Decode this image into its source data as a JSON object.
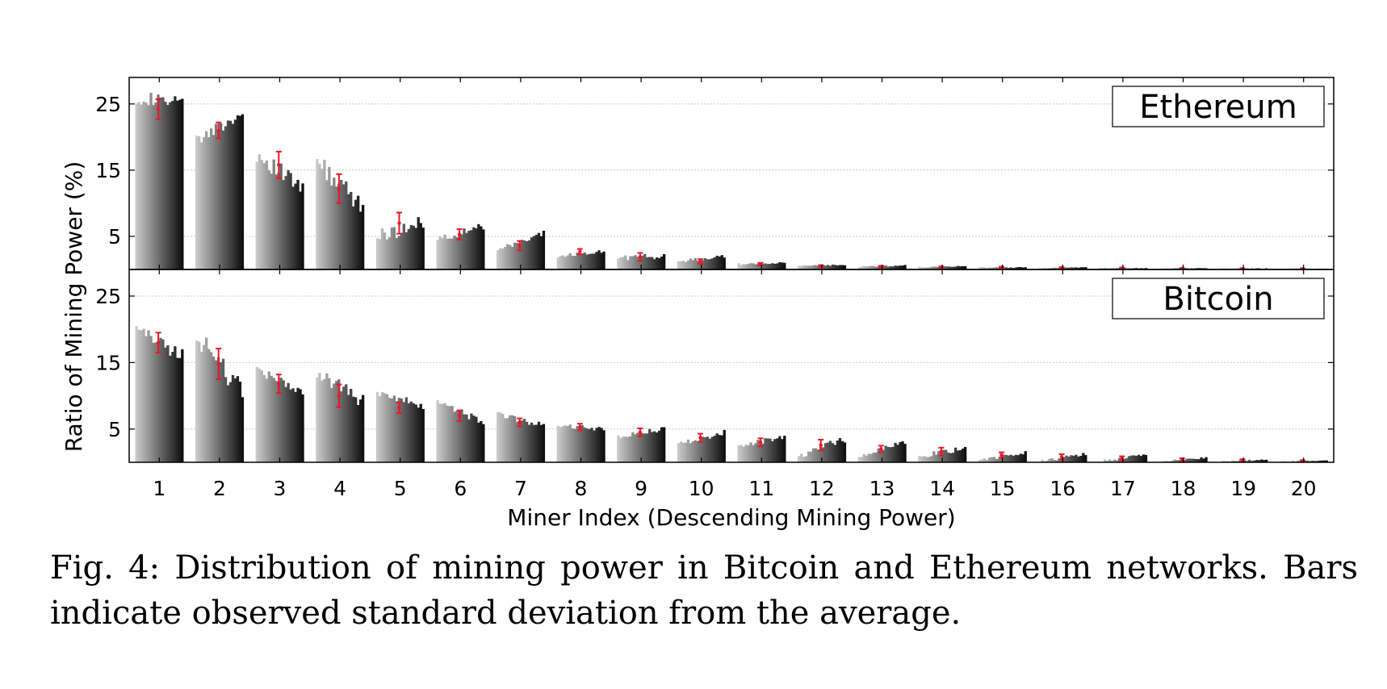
{
  "figure": {
    "caption": "Fig. 4: Distribution of mining power in Bitcoin and Ethereum networks. Bars indicate observed standard deviation from the average."
  },
  "chart_data": {
    "type": "bar",
    "xlabel": "Miner Index (Descending Mining Power)",
    "ylabel": "Ratio of Mining Power (%)",
    "categories": [
      "1",
      "2",
      "3",
      "4",
      "5",
      "6",
      "7",
      "8",
      "9",
      "10",
      "11",
      "12",
      "13",
      "14",
      "15",
      "16",
      "17",
      "18",
      "19",
      "20"
    ],
    "ylim": [
      0,
      29
    ],
    "yticks": [
      5,
      15,
      25
    ],
    "grid": true,
    "bar_colors": {
      "lightest": "#c8c8c8",
      "darkest": "#101010",
      "error_bar": "#e8182a"
    },
    "panels": [
      {
        "name": "Ethereum",
        "mean": [
          24.2,
          21,
          15.8,
          12.2,
          7,
          5.3,
          3.6,
          2.7,
          1.9,
          1.2,
          0.8,
          0.5,
          0.4,
          0.35,
          0.3,
          0.25,
          0.2,
          0.15,
          0.12,
          0.1
        ],
        "std": [
          1.5,
          1.2,
          2.0,
          2.2,
          1.6,
          0.8,
          0.7,
          0.4,
          0.6,
          0.35,
          0.2,
          0.15,
          0.15,
          0.1,
          0.1,
          0.08,
          0.08,
          0.06,
          0.05,
          0.05
        ],
        "start": [
          26,
          19.5,
          17.5,
          16.5,
          5,
          4.5,
          2.8,
          2,
          1.8,
          1.2,
          0.8,
          0.5,
          0.4,
          0.35,
          0.3,
          0.2,
          0.2,
          0.15,
          0.12,
          0.1
        ],
        "end": [
          25,
          23.5,
          12,
          9,
          7,
          6.5,
          5.5,
          2.8,
          2,
          2,
          1,
          0.7,
          0.6,
          0.5,
          0.3,
          0.3,
          0.2,
          0.2,
          0.15,
          0.1
        ]
      },
      {
        "name": "Bitcoin",
        "mean": [
          18,
          14.8,
          11.8,
          10,
          8.2,
          7,
          6,
          5.3,
          4.5,
          3.7,
          3,
          2.6,
          2,
          1.6,
          1.1,
          0.8,
          0.6,
          0.4,
          0.3,
          0.2
        ],
        "std": [
          1.5,
          2.3,
          1.4,
          1.7,
          0.8,
          0.8,
          0.6,
          0.5,
          0.6,
          0.6,
          0.6,
          0.8,
          0.5,
          0.6,
          0.4,
          0.4,
          0.3,
          0.2,
          0.15,
          0.1
        ],
        "start": [
          20,
          19,
          14.5,
          13.5,
          10.5,
          8.8,
          7.2,
          5.5,
          3.8,
          2.8,
          2.2,
          1,
          1,
          0.8,
          0.2,
          0.2,
          0.1,
          0.1,
          0.1,
          0.1
        ],
        "end": [
          16,
          10.5,
          10,
          9,
          8.5,
          6.2,
          5.5,
          5,
          5,
          4.5,
          4,
          3.5,
          3,
          2.2,
          1.5,
          1.2,
          1.2,
          0.7,
          0.4,
          0.3
        ]
      }
    ]
  }
}
